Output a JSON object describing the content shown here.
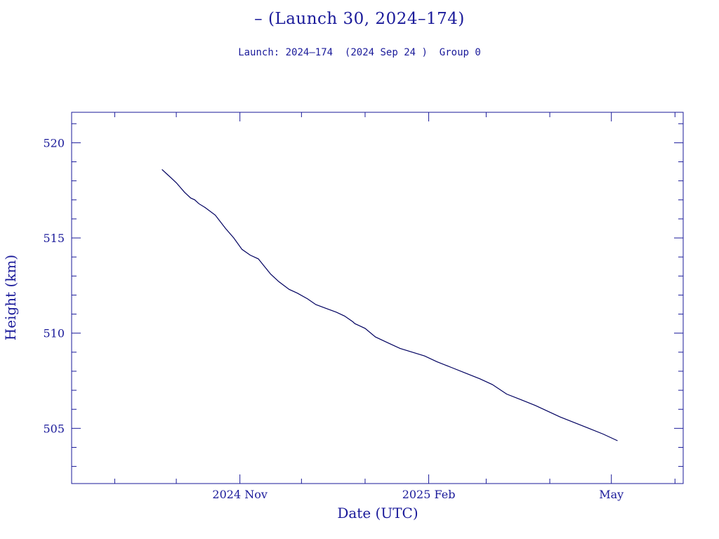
{
  "chart_data": {
    "type": "line",
    "title": "– (Launch 30, 2024–174)",
    "subtitle": "Launch: 2024–174  (2024 Sep 24 )  Group 0",
    "xlabel": "Date (UTC)",
    "ylabel": "Height (km)",
    "x_ticks": [
      "2024 Nov",
      "2025 Feb",
      "May"
    ],
    "x_tick_dates": [
      "2024-11-01",
      "2025-02-01",
      "2025-05-01"
    ],
    "xlim": [
      "2024-08-11",
      "2025-06-05"
    ],
    "y_ticks": [
      "505",
      "510",
      "515",
      "520"
    ],
    "y_tick_values": [
      505,
      510,
      515,
      520
    ],
    "ylim": [
      502.1,
      521.6
    ],
    "grid": false,
    "colors": {
      "line": "#000060",
      "axis": "#1a1a9a",
      "text": "#1a1a9a"
    },
    "series": [
      {
        "x": [
          "2024-09-24",
          "2024-09-27",
          "2024-10-01",
          "2024-10-05",
          "2024-10-08",
          "2024-10-10",
          "2024-10-12",
          "2024-10-15",
          "2024-10-20",
          "2024-10-25",
          "2024-10-29",
          "2024-11-02",
          "2024-11-06",
          "2024-11-10",
          "2024-11-13",
          "2024-11-16",
          "2024-11-20",
          "2024-11-25",
          "2024-11-29",
          "2024-12-04",
          "2024-12-08",
          "2024-12-13",
          "2024-12-18",
          "2024-12-22",
          "2024-12-26",
          "2024-12-27",
          "2024-12-29",
          "2025-01-01",
          "2025-01-06",
          "2025-01-12",
          "2025-01-18",
          "2025-01-24",
          "2025-01-30",
          "2025-02-05",
          "2025-02-12",
          "2025-02-19",
          "2025-02-26",
          "2025-03-04",
          "2025-03-11",
          "2025-03-18",
          "2025-03-25",
          "2025-03-31",
          "2025-04-06",
          "2025-04-13",
          "2025-04-20",
          "2025-04-27",
          "2025-05-04"
        ],
        "values": [
          518.6,
          518.3,
          517.9,
          517.4,
          517.1,
          517.0,
          516.8,
          516.6,
          516.2,
          515.5,
          515.0,
          514.4,
          514.1,
          513.9,
          513.5,
          513.1,
          512.7,
          512.3,
          512.1,
          511.8,
          511.5,
          511.3,
          511.1,
          510.9,
          510.6,
          510.5,
          510.4,
          510.25,
          509.8,
          509.5,
          509.2,
          509.0,
          508.8,
          508.5,
          508.2,
          507.9,
          507.6,
          507.3,
          506.8,
          506.5,
          506.2,
          505.9,
          505.6,
          505.3,
          505.0,
          504.7,
          504.35
        ]
      }
    ]
  }
}
